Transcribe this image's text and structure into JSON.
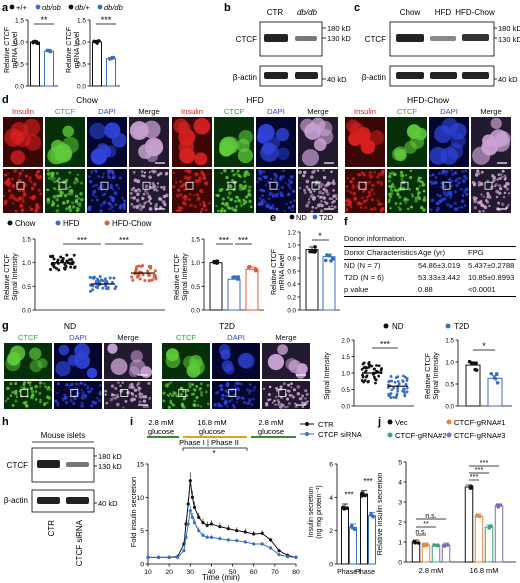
{
  "panel_labels": {
    "a": "a",
    "b": "b",
    "c": "c",
    "d": "d",
    "e": "e",
    "f": "f",
    "g": "g",
    "h": "h",
    "i": "i",
    "j": "j"
  },
  "panel_a": {
    "legend1": [
      "+/+",
      "ob/ob"
    ],
    "legend2": [
      "db/+",
      "db/db"
    ],
    "ylabel": [
      "Relative",
      "CTCF",
      "mRNA level"
    ],
    "ylabel_italic_word": "CTCF",
    "ticks": [
      "0.0",
      "0.5",
      "1.0",
      "1.5"
    ],
    "sig1": "**",
    "sig2": "***",
    "chart_data": [
      {
        "type": "bar",
        "categories": [
          "+/+",
          "ob/ob"
        ],
        "values": [
          1.0,
          0.79
        ],
        "ylim": [
          0,
          1.5
        ]
      },
      {
        "type": "bar",
        "categories": [
          "db/+",
          "db/db"
        ],
        "values": [
          1.0,
          0.62
        ],
        "ylim": [
          0,
          1.5
        ]
      }
    ]
  },
  "panel_b": {
    "headers": [
      "CTR",
      "db/db"
    ],
    "rows": [
      "CTCF",
      "β-actin"
    ],
    "markers": [
      "180 kD",
      "130 kD",
      "40 kD"
    ]
  },
  "panel_c": {
    "headers": [
      "Chow",
      "HFD",
      "HFD-Chow"
    ],
    "rows": [
      "CTCF",
      "β-actin"
    ],
    "markers": [
      "180 kD",
      "130 kD",
      "40 kD"
    ]
  },
  "panel_d": {
    "groups": [
      "Chow",
      "HFD",
      "HFD-Chow"
    ],
    "channels": [
      "Insulin",
      "CTCF",
      "DAPI",
      "Merge"
    ],
    "legend": [
      "Chow",
      "HFD",
      "HFD-Chow"
    ],
    "colors": [
      "#111111",
      "#3b6fc4",
      "#e05a3c"
    ],
    "ylabel1": [
      "Relative CTCF",
      "Signal Intensity"
    ],
    "ylabel2": [
      "Relative CTCF",
      "Signal Intensity"
    ],
    "ticks1": [
      "0.0",
      "0.5",
      "1.0",
      "1.5"
    ],
    "ticks2": [
      "0.0",
      "0.5",
      "1.0",
      "1.5"
    ],
    "sig": [
      "***",
      "***"
    ],
    "chart_data": [
      {
        "type": "scatter",
        "categories": [
          "Chow",
          "HFD",
          "HFD-Chow"
        ],
        "values": [
          1.0,
          0.55,
          0.78
        ],
        "ylim": [
          0,
          1.5
        ]
      },
      {
        "type": "bar",
        "categories": [
          "Chow",
          "HFD",
          "HFD-Chow"
        ],
        "values": [
          1.0,
          0.65,
          0.86
        ],
        "ylim": [
          0,
          1.5
        ]
      }
    ]
  },
  "panel_e": {
    "legend": [
      "ND",
      "T2D"
    ],
    "ylabel": [
      "Relative CTCF",
      "mRNA level"
    ],
    "ticks": [
      "0.0",
      "0.2",
      "0.4",
      "0.6",
      "0.8",
      "1.0",
      "1.2"
    ],
    "sig": "*",
    "chart_data": {
      "type": "bar",
      "categories": [
        "ND",
        "T2D"
      ],
      "values": [
        0.93,
        0.82
      ],
      "ylim": [
        0,
        1.2
      ]
    }
  },
  "panel_f": {
    "title": "Donor information.",
    "header": [
      "Donor Characteristics",
      "Age (yr)",
      "FPG"
    ],
    "rows": [
      [
        "ND (N = 7)",
        "54.86±3.019",
        "5.437±0.2788"
      ],
      [
        "T2D (N = 6)",
        "53.33±3.442",
        "10.85±0.8993"
      ],
      [
        "p value",
        "0.88",
        "<0.0001"
      ]
    ]
  },
  "panel_g": {
    "groups": [
      "ND",
      "T2D"
    ],
    "channels": [
      "CTCF",
      "DAPI",
      "Merge"
    ],
    "legend": [
      "ND",
      "T2D"
    ],
    "ylabel1": [
      "Signal Intensity"
    ],
    "ylabel2": [
      "Relative CTCF",
      "Signal Intensity"
    ],
    "ticks1": [
      "0.0",
      "0.5",
      "1.0",
      "1.5",
      "2.0"
    ],
    "ticks2": [
      "0.0",
      "0.5",
      "1.0",
      "1.5"
    ],
    "sig1": "***",
    "sig2": "*",
    "chart_data": [
      {
        "type": "scatter",
        "categories": [
          "ND",
          "T2D"
        ],
        "values": [
          1.0,
          0.6
        ],
        "ylim": [
          0,
          2.0
        ]
      },
      {
        "type": "bar",
        "categories": [
          "ND",
          "T2D"
        ],
        "values": [
          0.93,
          0.63
        ],
        "ylim": [
          0,
          1.5
        ]
      }
    ]
  },
  "panel_h": {
    "title": "Mouse islets",
    "rows": [
      "CTCF",
      "β-actin"
    ],
    "headers": [
      "CTR",
      "CTCF siRNA"
    ],
    "markers": [
      "180 kD",
      "130 kD",
      "40 kD"
    ]
  },
  "panel_i": {
    "glucose": [
      {
        "mM": "2.8 mM",
        "label": "glucose",
        "color": "#3a8a3a"
      },
      {
        "mM": "16.8 mM",
        "label": "glucose",
        "color": "#e3a01b"
      },
      {
        "mM": "2.8 mM",
        "label": "glucose",
        "color": "#3a8a3a"
      }
    ],
    "phase": [
      "Phase I",
      "Phase II"
    ],
    "ylabel": "Fold insulin secretion",
    "xlabel": "Time (min)",
    "xticks": [
      "10",
      "20",
      "30",
      "40",
      "50",
      "60",
      "70",
      "80"
    ],
    "yticks": [
      "0",
      "5",
      "10",
      "15"
    ],
    "legend": [
      "CTR",
      "CTCF siRNA"
    ],
    "star": "*",
    "bar_ylabel": [
      "Insulin secretion",
      "(ng mg protein⁻¹)"
    ],
    "bar_ticks": [
      "0",
      "2",
      "4",
      "6"
    ],
    "bar_sig": [
      "***",
      "***"
    ],
    "bar_categories": [
      "Phase I",
      "Phase II"
    ],
    "chart_data": [
      {
        "type": "line",
        "x": [
          10,
          15,
          20,
          24,
          27,
          28,
          29,
          30,
          31,
          32,
          34,
          36,
          38,
          40,
          44,
          48,
          52,
          56,
          60,
          64,
          68,
          72,
          76,
          80
        ],
        "series": [
          {
            "name": "CTR",
            "values": [
              1.0,
              1.0,
              1.0,
              1.1,
              3.0,
              6.0,
              9.0,
              12.5,
              10.0,
              8.5,
              7.0,
              6.2,
              5.8,
              6.0,
              5.6,
              5.3,
              5.0,
              4.8,
              4.5,
              4.6,
              3.6,
              2.0,
              1.3,
              1.0
            ]
          },
          {
            "name": "CTCF siRNA",
            "values": [
              1.0,
              1.0,
              1.0,
              1.0,
              2.0,
              4.0,
              6.0,
              8.0,
              7.0,
              6.2,
              5.0,
              4.3,
              4.0,
              4.0,
              3.8,
              3.6,
              3.5,
              3.3,
              3.0,
              3.0,
              2.4,
              1.4,
              1.1,
              1.0
            ]
          }
        ],
        "xlabel": "Time (min)",
        "ylabel": "Fold insulin secretion",
        "xlim": [
          10,
          80
        ],
        "ylim": [
          0,
          15
        ]
      },
      {
        "type": "bar",
        "categories": [
          "Phase I",
          "Phase II"
        ],
        "series": [
          {
            "name": "CTR",
            "values": [
              3.4,
              4.2
            ]
          },
          {
            "name": "CTCF siRNA",
            "values": [
              2.2,
              2.9
            ]
          }
        ],
        "ylim": [
          0,
          6
        ]
      }
    ]
  },
  "panel_j": {
    "legend": [
      "Vec",
      "CTCF-gRNA#1",
      "CTCF-gRNA#2",
      "CTCF-gRNA#3"
    ],
    "colors": [
      "#111111",
      "#e8873a",
      "#3f9f7f",
      "#7b6bb8"
    ],
    "ylabel": "Relative insulin secretion",
    "ticks": [
      "0",
      "1",
      "2",
      "3",
      "4",
      "5"
    ],
    "categories": [
      "2.8 mM",
      "16.8 mM"
    ],
    "sig_low": [
      "n.s.",
      "**",
      "n.s."
    ],
    "sig_high": [
      "***",
      "***",
      "***"
    ],
    "chart_data": {
      "type": "bar",
      "categories": [
        "2.8 mM",
        "16.8 mM"
      ],
      "series": [
        {
          "name": "Vec",
          "values": [
            1.0,
            3.75
          ]
        },
        {
          "name": "CTCF-gRNA#1",
          "values": [
            0.85,
            2.3
          ]
        },
        {
          "name": "CTCF-gRNA#2",
          "values": [
            0.8,
            1.75
          ]
        },
        {
          "name": "CTCF-gRNA#3",
          "values": [
            0.85,
            2.8
          ]
        }
      ],
      "ylim": [
        0,
        5
      ]
    }
  }
}
